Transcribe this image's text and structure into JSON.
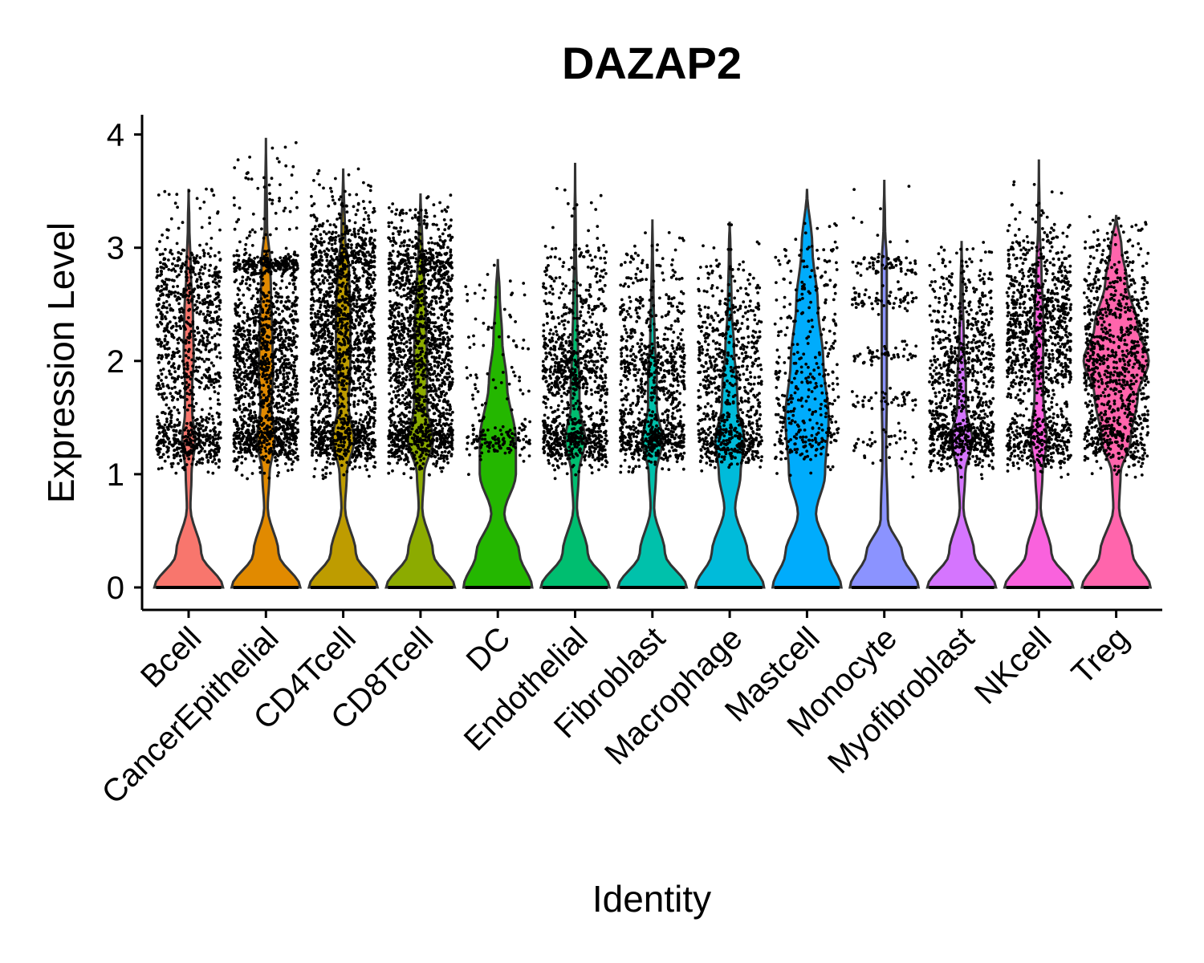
{
  "chart_data": {
    "type": "violin",
    "title": "DAZAP2",
    "xlabel": "Identity",
    "ylabel": "Expression Level",
    "ylim": [
      -0.2,
      4.15
    ],
    "yticks": [
      0,
      1,
      2,
      3,
      4
    ],
    "grid": false,
    "legend": "none",
    "jitter_points": true,
    "categories": [
      "Bcell",
      "CancerEpithelial",
      "CD4Tcell",
      "CD8Tcell",
      "DC",
      "Endothelial",
      "Fibroblast",
      "Macrophage",
      "Mastcell",
      "Monocyte",
      "Myofibroblast",
      "NKcell",
      "Treg"
    ],
    "colors": [
      "#F8766D",
      "#E18A00",
      "#BE9C00",
      "#8CAB00",
      "#24B700",
      "#00BE70",
      "#00C1AB",
      "#00BBDA",
      "#00ACFC",
      "#8B93FF",
      "#D575FE",
      "#F962DD",
      "#FF65AC"
    ],
    "max_values": [
      3.52,
      3.97,
      3.7,
      3.48,
      2.9,
      3.75,
      3.25,
      3.23,
      3.52,
      3.6,
      3.06,
      3.78,
      3.29
    ],
    "density_profiles": [
      [
        [
          0,
          0.95
        ],
        [
          0.3,
          0.35
        ],
        [
          0.7,
          0.05
        ],
        [
          1.0,
          0.08
        ],
        [
          1.3,
          0.18
        ],
        [
          1.55,
          0.1
        ],
        [
          1.8,
          0.1
        ],
        [
          2.0,
          0.14
        ],
        [
          2.4,
          0.12
        ],
        [
          2.8,
          0.06
        ],
        [
          3.2,
          0.02
        ],
        [
          3.52,
          0
        ]
      ],
      [
        [
          0,
          0.95
        ],
        [
          0.3,
          0.35
        ],
        [
          0.7,
          0.05
        ],
        [
          1.0,
          0.1
        ],
        [
          1.3,
          0.25
        ],
        [
          1.6,
          0.15
        ],
        [
          1.9,
          0.2
        ],
        [
          2.2,
          0.18
        ],
        [
          2.6,
          0.14
        ],
        [
          2.85,
          0.12
        ],
        [
          3.2,
          0.03
        ],
        [
          3.97,
          0
        ]
      ],
      [
        [
          0,
          0.95
        ],
        [
          0.3,
          0.35
        ],
        [
          0.7,
          0.05
        ],
        [
          1.0,
          0.1
        ],
        [
          1.3,
          0.3
        ],
        [
          1.6,
          0.15
        ],
        [
          2.0,
          0.2
        ],
        [
          2.4,
          0.2
        ],
        [
          2.8,
          0.16
        ],
        [
          3.1,
          0.05
        ],
        [
          3.7,
          0
        ]
      ],
      [
        [
          0,
          0.95
        ],
        [
          0.3,
          0.35
        ],
        [
          0.7,
          0.05
        ],
        [
          1.0,
          0.1
        ],
        [
          1.3,
          0.35
        ],
        [
          1.6,
          0.18
        ],
        [
          2.0,
          0.18
        ],
        [
          2.4,
          0.15
        ],
        [
          2.7,
          0.1
        ],
        [
          3.0,
          0.05
        ],
        [
          3.48,
          0
        ]
      ],
      [
        [
          0,
          0.95
        ],
        [
          0.3,
          0.6
        ],
        [
          0.65,
          0.18
        ],
        [
          1.0,
          0.5
        ],
        [
          1.3,
          0.5
        ],
        [
          1.8,
          0.25
        ],
        [
          2.2,
          0.12
        ],
        [
          2.6,
          0.05
        ],
        [
          2.9,
          0
        ]
      ],
      [
        [
          0,
          0.95
        ],
        [
          0.3,
          0.35
        ],
        [
          0.7,
          0.05
        ],
        [
          1.0,
          0.1
        ],
        [
          1.3,
          0.28
        ],
        [
          1.6,
          0.12
        ],
        [
          1.8,
          0.12
        ],
        [
          2.1,
          0.08
        ],
        [
          2.5,
          0.05
        ],
        [
          3.0,
          0.02
        ],
        [
          3.75,
          0
        ]
      ],
      [
        [
          0,
          0.95
        ],
        [
          0.3,
          0.35
        ],
        [
          0.7,
          0.05
        ],
        [
          1.0,
          0.1
        ],
        [
          1.3,
          0.28
        ],
        [
          1.6,
          0.12
        ],
        [
          1.9,
          0.12
        ],
        [
          2.2,
          0.06
        ],
        [
          2.6,
          0.03
        ],
        [
          3.0,
          0.01
        ],
        [
          3.25,
          0
        ]
      ],
      [
        [
          0,
          0.95
        ],
        [
          0.3,
          0.5
        ],
        [
          0.7,
          0.15
        ],
        [
          1.0,
          0.3
        ],
        [
          1.3,
          0.4
        ],
        [
          1.6,
          0.22
        ],
        [
          1.8,
          0.2
        ],
        [
          2.1,
          0.12
        ],
        [
          2.5,
          0.05
        ],
        [
          3.0,
          0.02
        ],
        [
          3.23,
          0
        ]
      ],
      [
        [
          0,
          0.95
        ],
        [
          0.3,
          0.6
        ],
        [
          0.65,
          0.25
        ],
        [
          1.0,
          0.5
        ],
        [
          1.5,
          0.6
        ],
        [
          2.0,
          0.45
        ],
        [
          2.5,
          0.3
        ],
        [
          3.0,
          0.15
        ],
        [
          3.52,
          0
        ]
      ],
      [
        [
          0,
          0.95
        ],
        [
          0.3,
          0.5
        ],
        [
          0.6,
          0.1
        ],
        [
          1.2,
          0.05
        ],
        [
          1.7,
          0.07
        ],
        [
          2.0,
          0.07
        ],
        [
          2.5,
          0.07
        ],
        [
          2.85,
          0.07
        ],
        [
          3.2,
          0.02
        ],
        [
          3.6,
          0
        ]
      ],
      [
        [
          0,
          0.95
        ],
        [
          0.3,
          0.35
        ],
        [
          0.7,
          0.05
        ],
        [
          1.0,
          0.1
        ],
        [
          1.3,
          0.3
        ],
        [
          1.6,
          0.12
        ],
        [
          1.8,
          0.12
        ],
        [
          2.2,
          0.06
        ],
        [
          2.6,
          0.03
        ],
        [
          3.06,
          0
        ]
      ],
      [
        [
          0,
          0.95
        ],
        [
          0.3,
          0.35
        ],
        [
          0.7,
          0.05
        ],
        [
          1.0,
          0.1
        ],
        [
          1.3,
          0.22
        ],
        [
          1.7,
          0.12
        ],
        [
          2.0,
          0.12
        ],
        [
          2.4,
          0.12
        ],
        [
          2.8,
          0.07
        ],
        [
          3.2,
          0.02
        ],
        [
          3.78,
          0
        ]
      ],
      [
        [
          0,
          0.95
        ],
        [
          0.3,
          0.45
        ],
        [
          0.7,
          0.08
        ],
        [
          1.0,
          0.12
        ],
        [
          1.3,
          0.4
        ],
        [
          1.7,
          0.6
        ],
        [
          2.0,
          0.9
        ],
        [
          2.3,
          0.6
        ],
        [
          2.7,
          0.3
        ],
        [
          3.0,
          0.15
        ],
        [
          3.29,
          0
        ]
      ]
    ],
    "point_clusters": [
      [
        [
          1.3,
          0.12,
          350
        ],
        [
          1.9,
          0.25,
          300
        ],
        [
          2.5,
          0.2,
          280
        ],
        [
          2.85,
          0.1,
          90
        ],
        [
          3.25,
          0.2,
          30
        ]
      ],
      [
        [
          1.3,
          0.12,
          420
        ],
        [
          1.8,
          0.25,
          420
        ],
        [
          2.3,
          0.3,
          480
        ],
        [
          2.85,
          0.05,
          200
        ],
        [
          3.4,
          0.3,
          60
        ]
      ],
      [
        [
          1.3,
          0.12,
          420
        ],
        [
          1.9,
          0.3,
          450
        ],
        [
          2.4,
          0.3,
          500
        ],
        [
          2.9,
          0.15,
          350
        ],
        [
          3.3,
          0.2,
          80
        ]
      ],
      [
        [
          1.3,
          0.12,
          420
        ],
        [
          1.85,
          0.25,
          420
        ],
        [
          2.3,
          0.3,
          480
        ],
        [
          2.85,
          0.15,
          320
        ],
        [
          3.2,
          0.15,
          80
        ]
      ],
      [
        [
          1.3,
          0.07,
          130
        ],
        [
          1.8,
          0.3,
          40
        ],
        [
          2.3,
          0.3,
          25
        ],
        [
          2.7,
          0.15,
          6
        ]
      ],
      [
        [
          1.3,
          0.12,
          400
        ],
        [
          1.9,
          0.2,
          400
        ],
        [
          2.4,
          0.25,
          150
        ],
        [
          2.85,
          0.15,
          60
        ],
        [
          3.3,
          0.2,
          10
        ]
      ],
      [
        [
          1.3,
          0.12,
          400
        ],
        [
          1.9,
          0.2,
          350
        ],
        [
          2.4,
          0.25,
          120
        ],
        [
          2.8,
          0.15,
          40
        ],
        [
          3.1,
          0.15,
          6
        ]
      ],
      [
        [
          1.3,
          0.12,
          320
        ],
        [
          1.85,
          0.2,
          250
        ],
        [
          2.3,
          0.25,
          180
        ],
        [
          2.8,
          0.2,
          30
        ]
      ],
      [
        [
          1.3,
          0.12,
          110
        ],
        [
          1.75,
          0.25,
          130
        ],
        [
          2.3,
          0.35,
          90
        ],
        [
          2.85,
          0.2,
          50
        ],
        [
          3.2,
          0.2,
          5
        ]
      ],
      [
        [
          1.3,
          0.12,
          40
        ],
        [
          1.65,
          0.05,
          40
        ],
        [
          2.05,
          0.05,
          50
        ],
        [
          2.55,
          0.05,
          60
        ],
        [
          2.85,
          0.05,
          60
        ],
        [
          3.2,
          0.2,
          8
        ]
      ],
      [
        [
          1.3,
          0.12,
          400
        ],
        [
          1.9,
          0.25,
          350
        ],
        [
          2.4,
          0.25,
          150
        ],
        [
          2.8,
          0.15,
          40
        ]
      ],
      [
        [
          1.3,
          0.12,
          320
        ],
        [
          2.0,
          0.2,
          350
        ],
        [
          2.45,
          0.2,
          350
        ],
        [
          2.9,
          0.15,
          110
        ],
        [
          3.3,
          0.25,
          30
        ]
      ],
      [
        [
          1.3,
          0.12,
          230
        ],
        [
          1.8,
          0.25,
          300
        ],
        [
          2.25,
          0.3,
          320
        ],
        [
          2.8,
          0.2,
          100
        ],
        [
          3.1,
          0.15,
          20
        ]
      ]
    ]
  }
}
